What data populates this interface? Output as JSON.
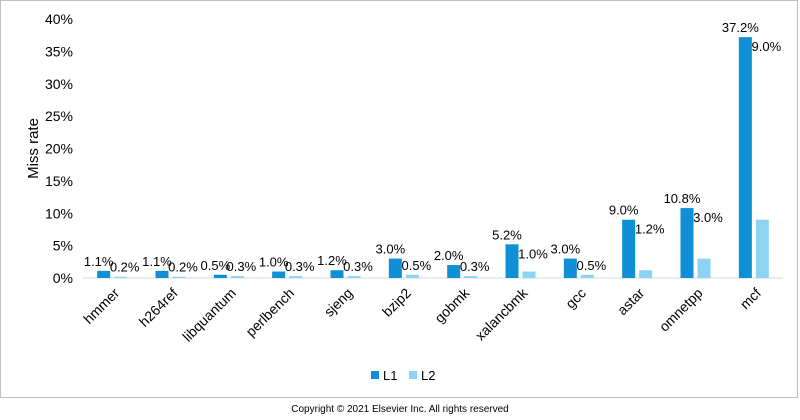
{
  "chart_data": {
    "type": "bar",
    "ylabel": "Miss rate",
    "ylim": [
      0,
      40
    ],
    "yticks": [
      "0%",
      "5%",
      "10%",
      "15%",
      "20%",
      "25%",
      "30%",
      "35%",
      "40%"
    ],
    "grid": false,
    "legend_position": "bottom",
    "categories": [
      "hmmer",
      "h264ref",
      "libquantum",
      "perlbench",
      "sjeng",
      "bzip2",
      "gobmk",
      "xalancbmk",
      "gcc",
      "astar",
      "omnetpp",
      "mcf"
    ],
    "series": [
      {
        "name": "L1",
        "color": "#0f8fd6",
        "values": [
          1.1,
          1.1,
          0.5,
          1.0,
          1.2,
          3.0,
          2.0,
          5.2,
          3.0,
          9.0,
          10.8,
          37.2
        ],
        "labels": [
          "1.1%",
          "1.1%",
          "0.5%",
          "1.0%",
          "1.2%",
          "3.0%",
          "2.0%",
          "5.2%",
          "3.0%",
          "9.0%",
          "10.8%",
          "37.2%"
        ]
      },
      {
        "name": "L2",
        "color": "#8dd3f4",
        "values": [
          0.2,
          0.2,
          0.3,
          0.3,
          0.3,
          0.5,
          0.3,
          1.0,
          0.5,
          1.2,
          3.0,
          9.0
        ],
        "labels": [
          "0.2%",
          "0.2%",
          "0.3%",
          "0.3%",
          "0.3%",
          "0.5%",
          "0.3%",
          "1.0%",
          "0.5%",
          "1.2%",
          "3.0%",
          "9.0%"
        ]
      }
    ]
  },
  "footer": {
    "copyright": "Copyright © 2021 Elsevier Inc. All rights reserved"
  }
}
